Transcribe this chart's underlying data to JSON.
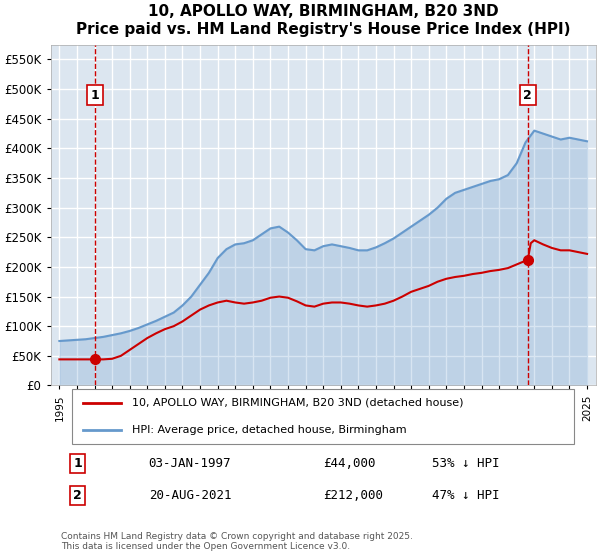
{
  "title": "10, APOLLO WAY, BIRMINGHAM, B20 3ND",
  "subtitle": "Price paid vs. HM Land Registry's House Price Index (HPI)",
  "ylabel_ticks": [
    "£0",
    "£50K",
    "£100K",
    "£150K",
    "£200K",
    "£250K",
    "£300K",
    "£350K",
    "£400K",
    "£450K",
    "£500K",
    "£550K"
  ],
  "ytick_values": [
    0,
    50000,
    100000,
    150000,
    200000,
    250000,
    300000,
    350000,
    400000,
    450000,
    500000,
    550000
  ],
  "ylim": [
    0,
    575000
  ],
  "xlim_start": 1994.5,
  "xlim_end": 2025.5,
  "background_color": "#dce6f0",
  "plot_bg_color": "#dce6f0",
  "grid_color": "#ffffff",
  "red_line_color": "#cc0000",
  "blue_line_color": "#6699cc",
  "annotation_box_color": "#ffffff",
  "annotation_border_color": "#cc0000",
  "vline_color": "#cc0000",
  "marker1_x": 1997.02,
  "marker1_y": 44000,
  "marker1_label": "1",
  "marker1_date": "03-JAN-1997",
  "marker1_price": "£44,000",
  "marker1_hpi": "53% ↓ HPI",
  "marker2_x": 2021.63,
  "marker2_y": 212000,
  "marker2_label": "2",
  "marker2_date": "20-AUG-2021",
  "marker2_price": "£212,000",
  "marker2_hpi": "47% ↓ HPI",
  "legend_line1": "10, APOLLO WAY, BIRMINGHAM, B20 3ND (detached house)",
  "legend_line2": "HPI: Average price, detached house, Birmingham",
  "footer": "Contains HM Land Registry data © Crown copyright and database right 2025.\nThis data is licensed under the Open Government Licence v3.0.",
  "hpi_data": {
    "years": [
      1995,
      1995.5,
      1996,
      1996.5,
      1997,
      1997.5,
      1998,
      1998.5,
      1999,
      1999.5,
      2000,
      2000.5,
      2001,
      2001.5,
      2002,
      2002.5,
      2003,
      2003.5,
      2004,
      2004.5,
      2005,
      2005.5,
      2006,
      2006.5,
      2007,
      2007.5,
      2008,
      2008.5,
      2009,
      2009.5,
      2010,
      2010.5,
      2011,
      2011.5,
      2012,
      2012.5,
      2013,
      2013.5,
      2014,
      2014.5,
      2015,
      2015.5,
      2016,
      2016.5,
      2017,
      2017.5,
      2018,
      2018.5,
      2019,
      2019.5,
      2020,
      2020.5,
      2021,
      2021.5,
      2022,
      2022.5,
      2023,
      2023.5,
      2024,
      2024.5,
      2025
    ],
    "values": [
      75000,
      76000,
      77000,
      78000,
      80000,
      82000,
      85000,
      88000,
      92000,
      97000,
      103000,
      109000,
      116000,
      123000,
      135000,
      150000,
      170000,
      190000,
      215000,
      230000,
      238000,
      240000,
      245000,
      255000,
      265000,
      268000,
      258000,
      245000,
      230000,
      228000,
      235000,
      238000,
      235000,
      232000,
      228000,
      228000,
      233000,
      240000,
      248000,
      258000,
      268000,
      278000,
      288000,
      300000,
      315000,
      325000,
      330000,
      335000,
      340000,
      345000,
      348000,
      355000,
      375000,
      410000,
      430000,
      425000,
      420000,
      415000,
      418000,
      415000,
      412000
    ]
  },
  "price_data": {
    "years": [
      1995,
      1995.5,
      1996,
      1996.5,
      1997.02,
      1997.5,
      1998,
      1998.5,
      1999,
      1999.5,
      2000,
      2000.5,
      2001,
      2001.5,
      2002,
      2002.5,
      2003,
      2003.5,
      2004,
      2004.5,
      2005,
      2005.5,
      2006,
      2006.5,
      2007,
      2007.5,
      2008,
      2008.5,
      2009,
      2009.5,
      2010,
      2010.5,
      2011,
      2011.5,
      2012,
      2012.5,
      2013,
      2013.5,
      2014,
      2014.5,
      2015,
      2015.5,
      2016,
      2016.5,
      2017,
      2017.5,
      2018,
      2018.5,
      2019,
      2019.5,
      2020,
      2020.5,
      2021.63,
      2021.8,
      2022,
      2022.5,
      2023,
      2023.5,
      2024,
      2024.5,
      2025
    ],
    "values": [
      44000,
      44000,
      44000,
      44000,
      44000,
      44000,
      45000,
      50000,
      60000,
      70000,
      80000,
      88000,
      95000,
      100000,
      108000,
      118000,
      128000,
      135000,
      140000,
      143000,
      140000,
      138000,
      140000,
      143000,
      148000,
      150000,
      148000,
      142000,
      135000,
      133000,
      138000,
      140000,
      140000,
      138000,
      135000,
      133000,
      135000,
      138000,
      143000,
      150000,
      158000,
      163000,
      168000,
      175000,
      180000,
      183000,
      185000,
      188000,
      190000,
      193000,
      195000,
      198000,
      212000,
      240000,
      245000,
      238000,
      232000,
      228000,
      228000,
      225000,
      222000
    ]
  }
}
